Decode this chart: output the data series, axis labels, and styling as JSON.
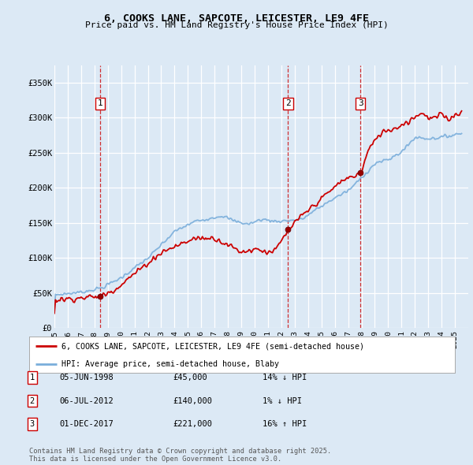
{
  "title": "6, COOKS LANE, SAPCOTE, LEICESTER, LE9 4FE",
  "subtitle": "Price paid vs. HM Land Registry's House Price Index (HPI)",
  "bg_color": "#dce9f5",
  "red_color": "#cc0000",
  "blue_color": "#7aaedb",
  "sale_years": [
    1998.42,
    2012.5,
    2017.92
  ],
  "sale_prices": [
    45000,
    140000,
    221000
  ],
  "legend_label_red": "6, COOKS LANE, SAPCOTE, LEICESTER, LE9 4FE (semi-detached house)",
  "legend_label_blue": "HPI: Average price, semi-detached house, Blaby",
  "table_entries": [
    {
      "num": 1,
      "date": "05-JUN-1998",
      "price": "£45,000",
      "pct": "14%",
      "dir": "↓",
      "vs": "HPI"
    },
    {
      "num": 2,
      "date": "06-JUL-2012",
      "price": "£140,000",
      "pct": "1%",
      "dir": "↓",
      "vs": "HPI"
    },
    {
      "num": 3,
      "date": "01-DEC-2017",
      "price": "£221,000",
      "pct": "16%",
      "dir": "↑",
      "vs": "HPI"
    }
  ],
  "footer": "Contains HM Land Registry data © Crown copyright and database right 2025.\nThis data is licensed under the Open Government Licence v3.0.",
  "ylim": [
    0,
    375000
  ],
  "yticks": [
    0,
    50000,
    100000,
    150000,
    200000,
    250000,
    300000,
    350000
  ],
  "ytick_labels": [
    "£0",
    "£50K",
    "£100K",
    "£150K",
    "£200K",
    "£250K",
    "£300K",
    "£350K"
  ]
}
